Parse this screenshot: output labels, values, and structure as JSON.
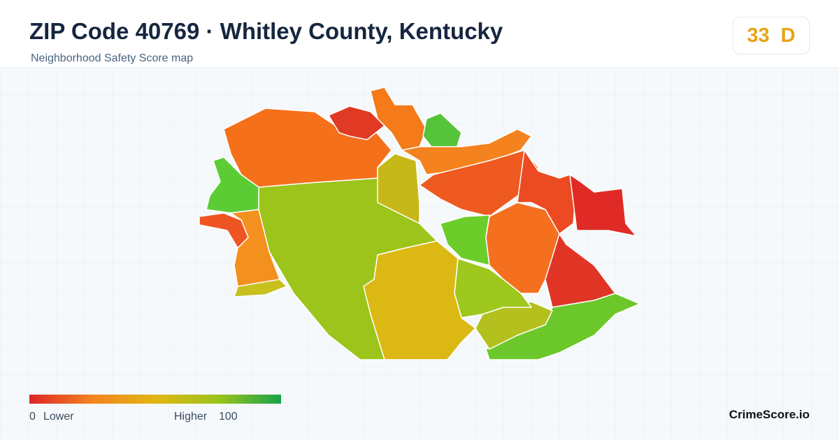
{
  "header": {
    "title": "ZIP Code 40769 · Whitley County, Kentucky",
    "subtitle": "Neighborhood Safety Score map"
  },
  "score": {
    "value": 33,
    "grade": "D"
  },
  "legend": {
    "min": 0,
    "low_label": "Lower",
    "high_label": "Higher",
    "max": 100
  },
  "footer": {
    "brand": "CrimeScore.io"
  }
}
